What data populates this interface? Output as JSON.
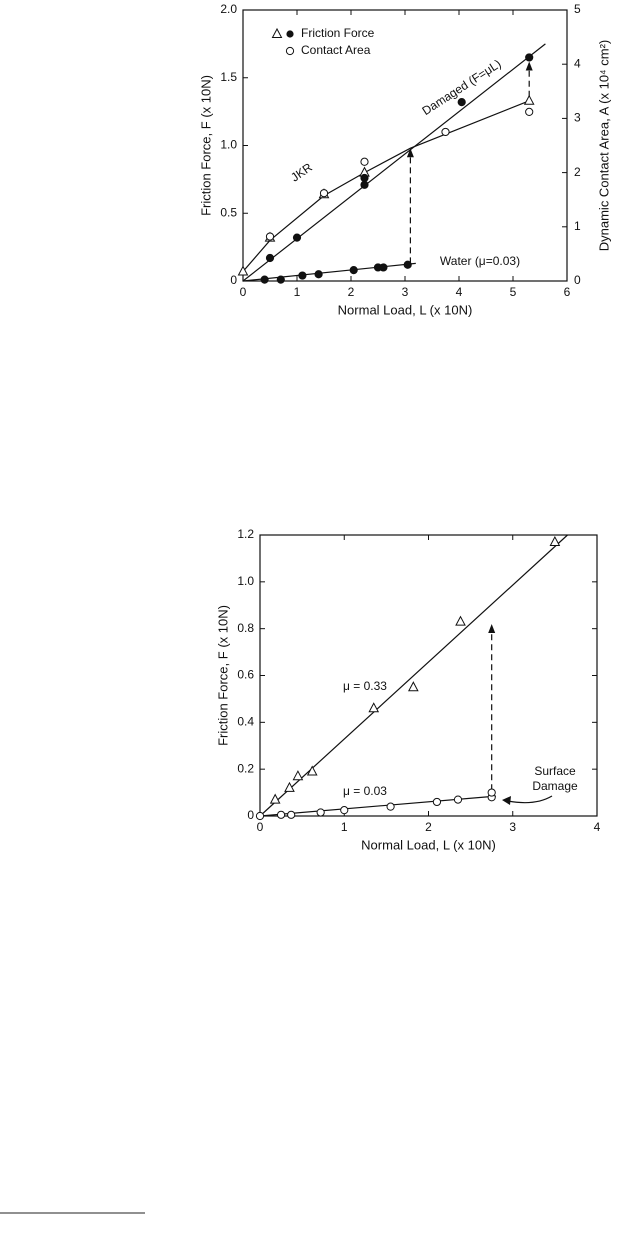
{
  "chart_data": [
    {
      "type": "scatter",
      "xlabel": "Normal Load, L (x 10N)",
      "ylabel": "Friction Force, F (x 10N)",
      "y2label": "Dynamic Contact Area, A (x 10⁴ cm²)",
      "xlim": [
        0,
        6
      ],
      "xticks": [
        0,
        1,
        2,
        3,
        4,
        5,
        6
      ],
      "ylim": [
        0,
        2
      ],
      "yticks": [
        0,
        0.5,
        {
          "value": 1,
          "label": "1.0"
        },
        1.5,
        {
          "value": 2,
          "label": "2.0"
        }
      ],
      "y2lim": [
        0,
        5
      ],
      "y2ticks": [
        0,
        1,
        2,
        3,
        4,
        5
      ],
      "series": [
        {
          "name": "Friction Force",
          "marker": "triangle",
          "x": [
            0,
            0.5,
            1.5,
            2.25,
            5.3
          ],
          "values": [
            0.07,
            0.32,
            0.64,
            0.8,
            1.33
          ]
        },
        {
          "marker": "filled",
          "x": [
            0.5,
            1.0,
            2.25,
            2.25,
            4.05,
            5.3,
            0.4,
            0.7,
            1.1,
            1.4,
            2.05,
            2.5,
            2.6,
            3.05
          ],
          "values": [
            0.17,
            0.32,
            0.71,
            0.76,
            1.32,
            1.65,
            0.01,
            0.01,
            0.04,
            0.05,
            0.08,
            0.1,
            0.1,
            0.12
          ]
        },
        {
          "name": "Contact Area",
          "marker": "open",
          "axis": "y2",
          "x": [
            0.5,
            1.5,
            2.25,
            3.75,
            5.3
          ],
          "values": [
            0.82,
            1.62,
            2.2,
            2.75,
            3.12
          ]
        }
      ],
      "fits": [
        {
          "x": [
            0,
            0.5,
            1.5,
            2.25,
            3.1,
            5.3
          ],
          "values": [
            0.07,
            0.3,
            0.63,
            0.8,
            0.98,
            1.33
          ]
        },
        {
          "x": [
            0,
            5.6
          ],
          "values": [
            0,
            1.75
          ]
        },
        {
          "x": [
            0,
            3.2
          ],
          "values": [
            0,
            0.13
          ]
        }
      ],
      "arrows": [
        {
          "x": 3.1,
          "from": 0.13,
          "to": 0.98
        },
        {
          "x": 5.3,
          "from": 1.36,
          "to": 1.62
        }
      ],
      "annotations": [
        "JKR",
        "Damaged (F=μL)",
        "Water (μ=0.03)"
      ]
    },
    {
      "type": "scatter",
      "xlabel": "Normal Load, L (x 10N)",
      "ylabel": "Friction Force, F (x 10N)",
      "xlim": [
        0,
        4
      ],
      "xticks": [
        0,
        1,
        2,
        3,
        4
      ],
      "ylim": [
        0,
        1.2
      ],
      "yticks": [
        0,
        0.2,
        0.4,
        0.6,
        0.8,
        {
          "value": 1,
          "label": "1.0"
        },
        1.2
      ],
      "series": [
        {
          "marker": "triangle",
          "x": [
            0.18,
            0.35,
            0.45,
            0.62,
            1.35,
            1.82,
            2.38,
            3.5
          ],
          "values": [
            0.07,
            0.12,
            0.17,
            0.19,
            0.46,
            0.55,
            0.83,
            1.17
          ]
        },
        {
          "marker": "open",
          "x": [
            0,
            0.25,
            0.37,
            0.72,
            1.0,
            1.55,
            2.1,
            2.35,
            2.75,
            2.75
          ],
          "values": [
            0,
            0.005,
            0.005,
            0.015,
            0.025,
            0.04,
            0.06,
            0.07,
            0.08,
            0.1
          ]
        }
      ],
      "fits": [
        {
          "x": [
            0,
            3.65
          ],
          "values": [
            0,
            1.2
          ]
        },
        {
          "x": [
            0,
            2.8
          ],
          "values": [
            0,
            0.085
          ]
        }
      ],
      "arrows": [
        {
          "x": 2.75,
          "from": 0.11,
          "to": 0.82
        }
      ],
      "annotations": [
        "μ = 0.33",
        "μ = 0.03",
        "Surface",
        "Damage"
      ]
    }
  ]
}
